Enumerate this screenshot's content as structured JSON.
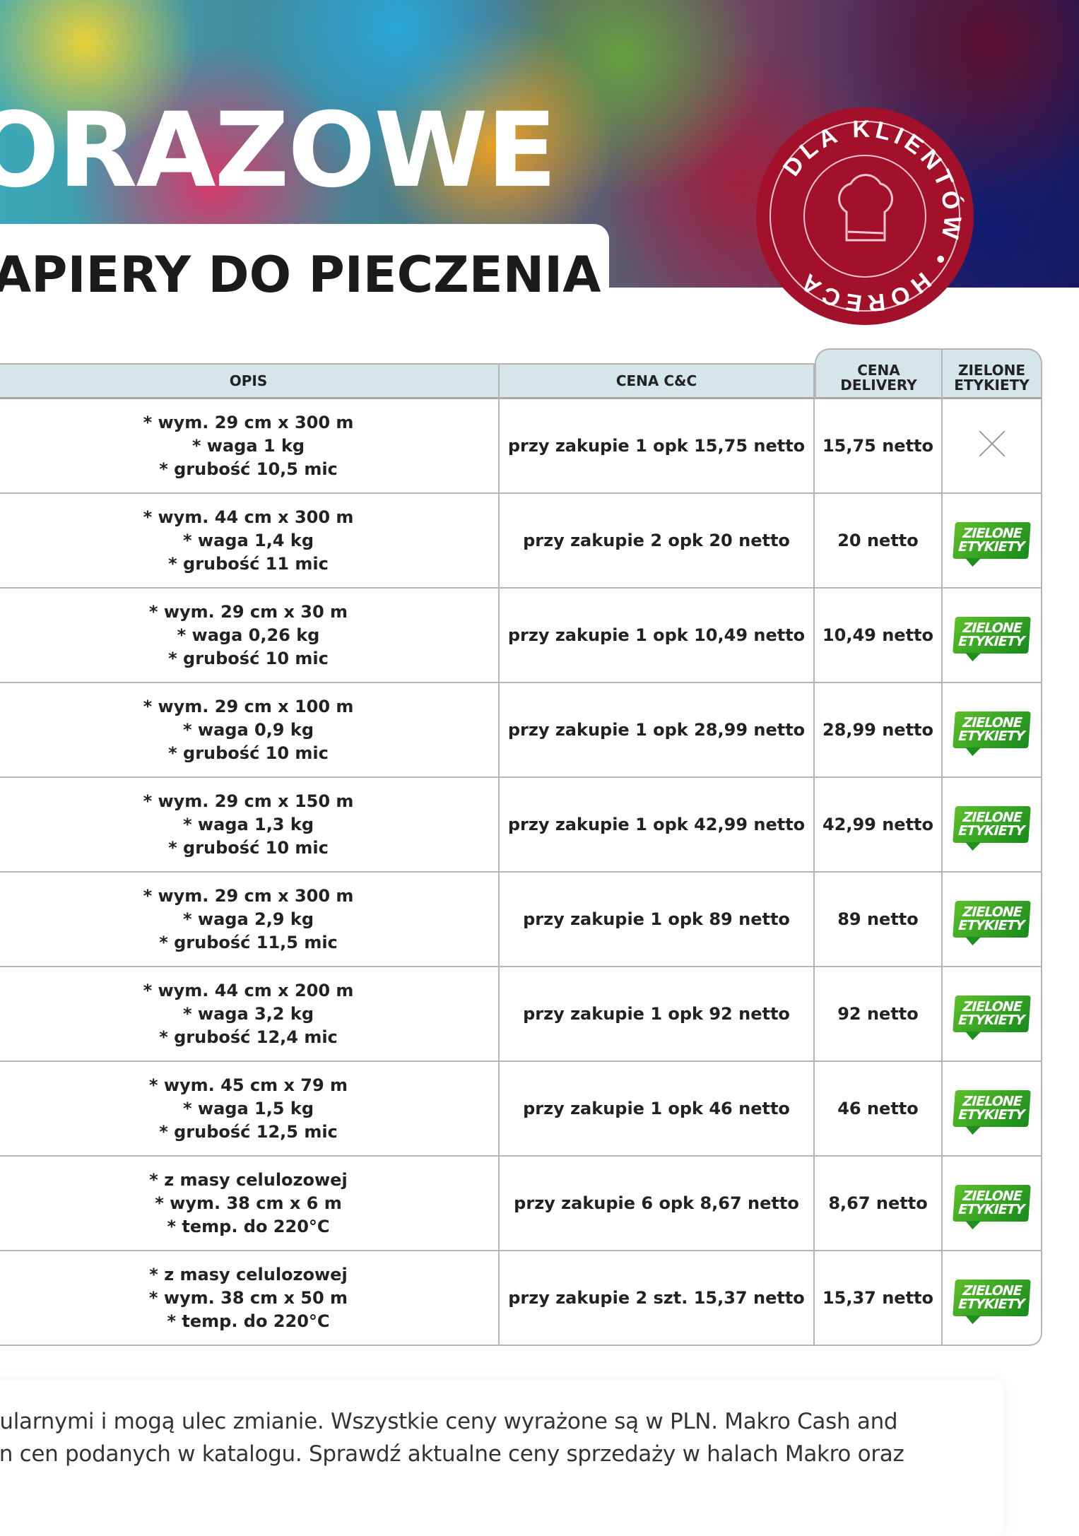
{
  "header": {
    "title": "ORAZOWE",
    "subtitle": "APIERY DO PIECZENIA",
    "badge": {
      "text": "DLA KLIENTÓW • HORECA",
      "icon": "chef-hat-icon",
      "color": "#a3102a"
    }
  },
  "table": {
    "columns": [
      "OPIS",
      "CENA C&C",
      "CENA DELIVERY",
      "ZIELONE ETYKIETY"
    ],
    "green_label": {
      "line1": "ZIELONE",
      "line2": "ETYKIETY",
      "color": "#2ea82a"
    },
    "rows": [
      {
        "opis": [
          "* wym. 29 cm x 300 m",
          "* waga 1 kg",
          "* grubość 10,5  mic"
        ],
        "cc": "przy zakupie 1 opk 15,75 netto",
        "delivery": "15,75 netto",
        "green": false
      },
      {
        "opis": [
          "* wym. 44 cm x 300 m",
          "* waga 1,4 kg",
          "* grubość 11  mic"
        ],
        "cc": "przy zakupie 2 opk 20 netto",
        "delivery": "20 netto",
        "green": true
      },
      {
        "opis": [
          "* wym. 29 cm x 30 m",
          "* waga 0,26 kg",
          "* grubość 10 mic"
        ],
        "cc": "przy zakupie 1 opk 10,49 netto",
        "delivery": "10,49 netto",
        "green": true
      },
      {
        "opis": [
          "* wym. 29 cm x 100 m",
          "* waga 0,9 kg",
          "* grubość 10 mic"
        ],
        "cc": "przy zakupie 1 opk 28,99 netto",
        "delivery": "28,99 netto",
        "green": true
      },
      {
        "opis": [
          "* wym. 29 cm x 150 m",
          "* waga 1,3 kg",
          "* grubość 10 mic"
        ],
        "cc": "przy zakupie 1 opk 42,99 netto",
        "delivery": "42,99 netto",
        "green": true
      },
      {
        "opis": [
          "* wym. 29 cm x 300 m",
          "* waga 2,9 kg",
          "* grubość 11,5 mic"
        ],
        "cc": "przy zakupie 1 opk 89 netto",
        "delivery": "89 netto",
        "green": true
      },
      {
        "opis": [
          "* wym. 44 cm x 200 m",
          "* waga 3,2 kg",
          "* grubość 12,4 mic"
        ],
        "cc": "przy zakupie 1 opk 92 netto",
        "delivery": "92 netto",
        "green": true
      },
      {
        "opis": [
          "* wym. 45 cm x 79 m",
          "* waga 1,5 kg",
          "* grubość 12,5 mic"
        ],
        "cc": "przy zakupie 1 opk 46 netto",
        "delivery": "46 netto",
        "green": true
      },
      {
        "opis": [
          "* z masy celulozowej",
          "* wym. 38 cm x 6 m",
          "* temp. do 220°C"
        ],
        "cc": "przy zakupie 6 opk 8,67 netto",
        "delivery": "8,67 netto",
        "green": true
      },
      {
        "opis": [
          "* z masy celulozowej",
          "* wym. 38 cm x 50 m",
          "* temp. do 220°C"
        ],
        "cc": "przy zakupie 2 szt. 15,37 netto",
        "delivery": "15,37 netto",
        "green": true
      }
    ]
  },
  "footer": {
    "lines": [
      "gularnymi i mogą ulec zmianie. Wszystkie ceny wyrażone są w PLN. Makro Cash and",
      "an cen podanych w katalogu. Sprawdź aktualne ceny sprzedaży w halach Makro oraz",
      "."
    ]
  }
}
